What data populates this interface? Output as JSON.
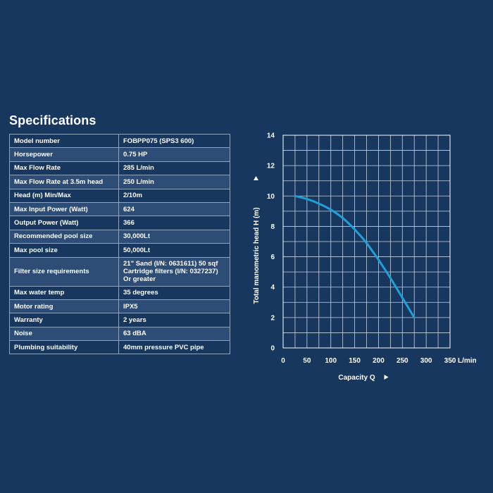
{
  "title": "Specifications",
  "specs": [
    {
      "label": "Model number",
      "value": "FOBPP075 (SPS3 600)"
    },
    {
      "label": "Horsepower",
      "value": "0.75 HP"
    },
    {
      "label": "Max Flow Rate",
      "value": "285 L/min"
    },
    {
      "label": "Max Flow Rate at 3.5m head",
      "value": "250 L/min"
    },
    {
      "label": "Head (m) Min/Max",
      "value": "2/10m"
    },
    {
      "label": "Max Input Power (Watt)",
      "value": "624"
    },
    {
      "label": "Output Power (Watt)",
      "value": "366"
    },
    {
      "label": "Recommended pool size",
      "value": "30,000Lt"
    },
    {
      "label": "Max pool size",
      "value": "50,000Lt"
    },
    {
      "label": "Filter size requirements",
      "value": "21\" Sand (I/N: 0631611) 50 sqf\nCartridge filters (I/N: 0327237)\nOr greater"
    },
    {
      "label": "Max water temp",
      "value": "35 degrees"
    },
    {
      "label": "Motor rating",
      "value": "IPX5"
    },
    {
      "label": "Warranty",
      "value": "2 years"
    },
    {
      "label": "Noise",
      "value": "63 dBA"
    },
    {
      "label": "Plumbing suitability",
      "value": "40mm pressure PVC pipe"
    }
  ],
  "chart_data": {
    "type": "line",
    "title": "",
    "xlabel": "Capacity Q",
    "ylabel": "Total manometric head H (m)",
    "x_unit": "L/min",
    "xlim": [
      0,
      350
    ],
    "ylim": [
      0,
      14
    ],
    "x_ticks": [
      0,
      50,
      100,
      150,
      200,
      250,
      300,
      350
    ],
    "y_ticks": [
      0,
      2,
      4,
      6,
      8,
      10,
      12,
      14
    ],
    "x_tick_labels": [
      "0",
      "50",
      "100",
      "150",
      "200",
      "250",
      "300",
      "350"
    ],
    "y_tick_labels": [
      "0",
      "2",
      "4",
      "6",
      "8",
      "10",
      "12",
      "14"
    ],
    "grid": true,
    "line_color": "#1ea0d8",
    "series": [
      {
        "x": [
          25,
          50,
          75,
          100,
          125,
          150,
          175,
          200,
          225,
          250,
          275
        ],
        "y": [
          10,
          9.8,
          9.5,
          9.1,
          8.55,
          7.8,
          6.9,
          5.8,
          4.6,
          3.3,
          2.0
        ]
      }
    ]
  }
}
